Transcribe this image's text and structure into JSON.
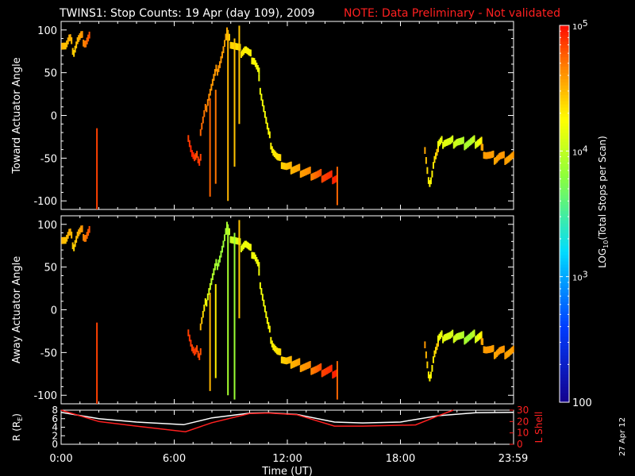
{
  "header": {
    "title": "TWINS1: Stop Counts: 19 Apr (day 109), 2009",
    "note": "NOTE: Data Preliminary - Not validated",
    "note_color": "#ff2020"
  },
  "side_stamp": "27 Apr 12",
  "chart_data": [
    {
      "type": "heatmap",
      "ylabel": "Toward Actuator Angle",
      "ylim": [
        -110,
        110
      ],
      "xlim": [
        0,
        24
      ],
      "yticks": [
        100,
        50,
        0,
        -50,
        -100
      ],
      "segments": [
        {
          "x0": 0.05,
          "x1": 1.5,
          "y": [
            85,
            82,
            90,
            75,
            88,
            92,
            85,
            93
          ],
          "lv": [
            4.5,
            4.45,
            4.55,
            4.4,
            4.5,
            4.6,
            4.7,
            4.8
          ]
        },
        {
          "x0": 6.75,
          "x1": 7.4,
          "y": [
            -25,
            -35,
            -45,
            -50,
            -55,
            -40,
            -55,
            -48
          ],
          "lv": [
            4.85,
            4.9,
            4.95,
            4.9,
            4.85,
            4.8,
            4.9,
            4.85
          ]
        },
        {
          "x0": 7.4,
          "x1": 8.8,
          "y": [
            -20,
            0,
            20,
            35,
            50,
            60,
            75,
            95
          ],
          "lv": [
            4.75,
            4.7,
            4.65,
            4.6,
            4.6,
            4.62,
            4.58,
            4.55
          ]
        },
        {
          "x0": 8.8,
          "x1": 10.5,
          "y": [
            90,
            85,
            80,
            75,
            78,
            70,
            65,
            50
          ],
          "lv": [
            4.45,
            4.4,
            4.35,
            4.35,
            4.3,
            4.3,
            4.25,
            4.2
          ]
        },
        {
          "x0": 10.5,
          "x1": 12.2,
          "y": [
            40,
            10,
            -20,
            -40,
            -50,
            -55,
            -60,
            -62
          ],
          "lv": [
            4.2,
            4.2,
            4.25,
            4.3,
            4.35,
            4.4,
            4.45,
            4.5
          ]
        },
        {
          "x0": 12.2,
          "x1": 14.6,
          "y": [
            -62,
            -64,
            -66,
            -68,
            -70,
            -71,
            -72,
            -73
          ],
          "lv": [
            4.5,
            4.55,
            4.6,
            4.65,
            4.75,
            4.85,
            4.9,
            4.95
          ]
        },
        {
          "x0": 19.3,
          "x1": 20.0,
          "y": [
            -40,
            -60,
            -80,
            -85,
            -60,
            -50,
            -45,
            -40
          ],
          "lv": [
            4.55,
            4.4,
            4.3,
            4.25,
            4.3,
            4.35,
            4.4,
            4.45
          ]
        },
        {
          "x0": 20.0,
          "x1": 22.3,
          "y": [
            -35,
            -30,
            -32,
            -30,
            -33,
            -32,
            -31,
            -30
          ],
          "lv": [
            4.2,
            4.15,
            4.1,
            4.05,
            3.95,
            3.9,
            4.05,
            4.3
          ]
        },
        {
          "x0": 22.3,
          "x1": 23.99,
          "y": [
            -40,
            -45,
            -48,
            -50,
            -48,
            -50,
            -50,
            -49
          ],
          "lv": [
            4.55,
            4.6,
            4.6,
            4.55,
            4.6,
            4.6,
            4.55,
            4.6
          ]
        }
      ],
      "spikes": [
        {
          "x": 1.9,
          "y0": -110,
          "y1": -15,
          "lv": 4.85
        },
        {
          "x": 7.9,
          "y0": -95,
          "y1": 20,
          "lv": 4.75
        },
        {
          "x": 8.2,
          "y0": -80,
          "y1": 30,
          "lv": 4.7
        },
        {
          "x": 8.85,
          "y0": -100,
          "y1": 100,
          "lv": 4.5
        },
        {
          "x": 9.2,
          "y0": -60,
          "y1": 90,
          "lv": 4.45
        },
        {
          "x": 9.45,
          "y0": -10,
          "y1": 105,
          "lv": 4.45
        },
        {
          "x": 14.65,
          "y0": -105,
          "y1": -60,
          "lv": 4.75
        }
      ]
    },
    {
      "type": "heatmap",
      "ylabel": "Away Actuator Angle",
      "ylim": [
        -110,
        110
      ],
      "xlim": [
        0,
        24
      ],
      "yticks": [
        100,
        50,
        0,
        -50,
        -100
      ],
      "segments": [
        {
          "x0": 0.05,
          "x1": 1.5,
          "y": [
            85,
            82,
            90,
            75,
            88,
            92,
            85,
            93
          ],
          "lv": [
            4.5,
            4.45,
            4.55,
            4.4,
            4.5,
            4.6,
            4.7,
            4.8
          ]
        },
        {
          "x0": 6.75,
          "x1": 7.4,
          "y": [
            -25,
            -35,
            -45,
            -50,
            -55,
            -40,
            -55,
            -48
          ],
          "lv": [
            4.85,
            4.9,
            4.85,
            4.85,
            4.9,
            4.8,
            4.85,
            4.8
          ]
        },
        {
          "x0": 7.4,
          "x1": 8.8,
          "y": [
            -20,
            0,
            20,
            35,
            50,
            60,
            75,
            95
          ],
          "lv": [
            4.5,
            4.3,
            4.1,
            3.95,
            3.9,
            3.85,
            3.85,
            3.9
          ]
        },
        {
          "x0": 8.8,
          "x1": 10.5,
          "y": [
            90,
            85,
            80,
            75,
            78,
            70,
            65,
            50
          ],
          "lv": [
            4.0,
            4.05,
            4.1,
            4.15,
            4.2,
            4.2,
            4.2,
            4.2
          ]
        },
        {
          "x0": 10.5,
          "x1": 12.2,
          "y": [
            40,
            10,
            -20,
            -40,
            -50,
            -55,
            -60,
            -62
          ],
          "lv": [
            4.2,
            4.2,
            4.25,
            4.3,
            4.35,
            4.4,
            4.45,
            4.5
          ]
        },
        {
          "x0": 12.2,
          "x1": 14.6,
          "y": [
            -62,
            -64,
            -66,
            -68,
            -70,
            -71,
            -72,
            -73
          ],
          "lv": [
            4.5,
            4.55,
            4.6,
            4.65,
            4.75,
            4.85,
            4.9,
            4.95
          ]
        },
        {
          "x0": 19.3,
          "x1": 20.0,
          "y": [
            -40,
            -60,
            -80,
            -85,
            -60,
            -50,
            -45,
            -40
          ],
          "lv": [
            4.6,
            4.45,
            4.3,
            4.25,
            4.3,
            4.35,
            4.4,
            4.45
          ]
        },
        {
          "x0": 20.0,
          "x1": 22.3,
          "y": [
            -35,
            -30,
            -32,
            -30,
            -33,
            -32,
            -31,
            -30
          ],
          "lv": [
            4.2,
            4.15,
            4.1,
            4.05,
            3.95,
            3.85,
            4.05,
            4.3
          ]
        },
        {
          "x0": 22.3,
          "x1": 23.99,
          "y": [
            -40,
            -45,
            -48,
            -50,
            -48,
            -50,
            -50,
            -49
          ],
          "lv": [
            4.55,
            4.6,
            4.6,
            4.55,
            4.6,
            4.6,
            4.55,
            4.6
          ]
        }
      ],
      "spikes": [
        {
          "x": 1.9,
          "y0": -110,
          "y1": -15,
          "lv": 4.85
        },
        {
          "x": 7.9,
          "y0": -95,
          "y1": 20,
          "lv": 4.5
        },
        {
          "x": 8.2,
          "y0": -80,
          "y1": 30,
          "lv": 4.3
        },
        {
          "x": 8.85,
          "y0": -100,
          "y1": 100,
          "lv": 3.9
        },
        {
          "x": 9.2,
          "y0": -105,
          "y1": 90,
          "lv": 3.85
        },
        {
          "x": 9.45,
          "y0": -10,
          "y1": 105,
          "lv": 4.45
        },
        {
          "x": 14.65,
          "y0": -105,
          "y1": -60,
          "lv": 4.75
        }
      ]
    },
    {
      "type": "line",
      "xlabel": "Time (UT)",
      "ylabel": "R (R",
      "ylabel_sub": "E",
      "ylabel_end": ")",
      "ylabel_right": "L Shell",
      "xlim": [
        0,
        24
      ],
      "ylim": [
        0,
        8
      ],
      "ylim_right": [
        0,
        30
      ],
      "yticks": [
        8,
        6,
        4,
        2,
        0
      ],
      "yticks_right": [
        30,
        20,
        10,
        0
      ],
      "xticks": [
        {
          "v": 0,
          "label": "0:00"
        },
        {
          "v": 6,
          "label": "6:00"
        },
        {
          "v": 12,
          "label": "12:00"
        },
        {
          "v": 18,
          "label": "18:00"
        },
        {
          "v": 23.98,
          "label": "23:59"
        }
      ],
      "series": [
        {
          "color": "#ffffff",
          "axis": "left",
          "x": [
            0,
            2,
            4,
            6.5,
            8,
            10,
            11,
            12.5,
            14.5,
            16,
            18,
            20,
            22,
            24
          ],
          "y": [
            7.5,
            6,
            5.2,
            4.6,
            6.2,
            7.3,
            7.4,
            7.0,
            5.2,
            5.0,
            5.2,
            6.7,
            7.4,
            7.5
          ]
        },
        {
          "color": "#ff2020",
          "axis": "right",
          "x": [
            0,
            2,
            4,
            6.6,
            8,
            10,
            11,
            12.5,
            14.5,
            16,
            18.8,
            20,
            20.8
          ],
          "y": [
            30,
            20,
            16,
            11,
            19,
            27,
            27.5,
            26,
            16,
            16,
            17,
            25,
            30
          ]
        }
      ]
    }
  ],
  "colorbar": {
    "label": "LOG",
    "label_sub": "10",
    "label_rest": "(Total Stops per Scan)",
    "scale": "log",
    "min": 100,
    "max": 100000,
    "ticks": [
      {
        "lv": 5,
        "base": "10",
        "exp": "5"
      },
      {
        "lv": 4,
        "base": "10",
        "exp": "4"
      },
      {
        "lv": 3,
        "base": "10",
        "exp": "3"
      },
      {
        "lv": 2,
        "base": "100",
        "exp": ""
      }
    ]
  }
}
